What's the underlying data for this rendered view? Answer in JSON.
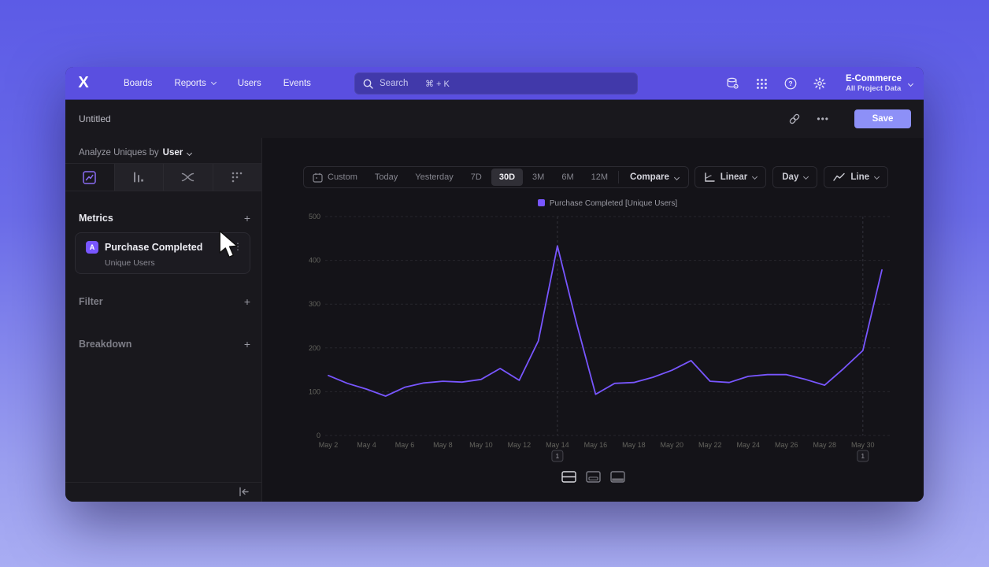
{
  "app": {
    "accent": "#7856ff",
    "nav_color": "#5a4fe0",
    "save_color": "#8d90f7",
    "background_top": "#5c5be6",
    "background_bottom": "#a9adf3"
  },
  "nav": {
    "logo_icon": "mixpanel-logo",
    "items": [
      {
        "label": "Boards",
        "caret": false
      },
      {
        "label": "Reports",
        "caret": true
      },
      {
        "label": "Users",
        "caret": false
      },
      {
        "label": "Events",
        "caret": false
      }
    ],
    "search": {
      "icon": "search-icon",
      "placeholder": "Search",
      "shortcut": "⌘ + K"
    },
    "right_icons": [
      "data-sources-icon",
      "apps-grid-icon",
      "help-icon",
      "settings-icon"
    ],
    "project": {
      "name": "E-Commerce",
      "scope": "All Project Data"
    }
  },
  "header": {
    "title": "Untitled",
    "share_icon": "link-icon",
    "more_label": "•••",
    "save_label": "Save"
  },
  "sidebar": {
    "analyze": {
      "prefix": "Analyze Uniques by",
      "value": "User"
    },
    "tabs": [
      {
        "name": "insights",
        "selected": true
      },
      {
        "name": "funnels",
        "selected": false
      },
      {
        "name": "flows",
        "selected": false
      },
      {
        "name": "retention",
        "selected": false
      }
    ],
    "metrics": {
      "header": "Metrics",
      "add_label": "+",
      "card": {
        "badge": "A",
        "title": "Purchase Completed",
        "subtitle": "Unique Users",
        "menu_icon": "⋮"
      }
    },
    "filter": {
      "header": "Filter",
      "add_label": "+"
    },
    "breakdown": {
      "header": "Breakdown",
      "add_label": "+"
    },
    "collapse_icon": "collapse-left-icon"
  },
  "toolbar": {
    "ranges": [
      "Custom",
      "Today",
      "Yesterday",
      "7D",
      "30D",
      "3M",
      "6M",
      "12M"
    ],
    "selected_range": "30D",
    "compare_label": "Compare",
    "scale_label": "Linear",
    "granularity_label": "Day",
    "chart_type_label": "Line"
  },
  "chart_data": {
    "type": "line",
    "legend_position": "top",
    "grid": "horizontal-dashed",
    "ylim": [
      0,
      500
    ],
    "yticks": [
      0,
      100,
      200,
      300,
      400,
      500
    ],
    "x_tick_every": 2,
    "x": [
      "May 2",
      "May 3",
      "May 4",
      "May 5",
      "May 6",
      "May 7",
      "May 8",
      "May 9",
      "May 10",
      "May 11",
      "May 12",
      "May 13",
      "May 14",
      "May 15",
      "May 16",
      "May 17",
      "May 18",
      "May 19",
      "May 20",
      "May 21",
      "May 22",
      "May 23",
      "May 24",
      "May 25",
      "May 26",
      "May 27",
      "May 28",
      "May 29",
      "May 30",
      "May 31"
    ],
    "series": [
      {
        "name": "Purchase Completed [Unique Users]",
        "color": "#7856ff",
        "values": [
          137,
          119,
          106,
          90,
          110,
          120,
          124,
          122,
          128,
          153,
          126,
          216,
          433,
          257,
          94,
          119,
          121,
          133,
          149,
          171,
          124,
          121,
          135,
          139,
          139,
          128,
          115,
          153,
          194,
          378
        ]
      }
    ],
    "annotations": [
      {
        "x_index": 12,
        "x_label": "May 14",
        "label": "1"
      },
      {
        "x_index": 28,
        "x_label": "May 30",
        "label": "1"
      }
    ]
  },
  "footer": {
    "layout_toggles": [
      {
        "name": "split-chart-table-layout",
        "selected": true
      },
      {
        "name": "chart-only-layout",
        "selected": false
      },
      {
        "name": "table-only-layout",
        "selected": false
      }
    ]
  }
}
